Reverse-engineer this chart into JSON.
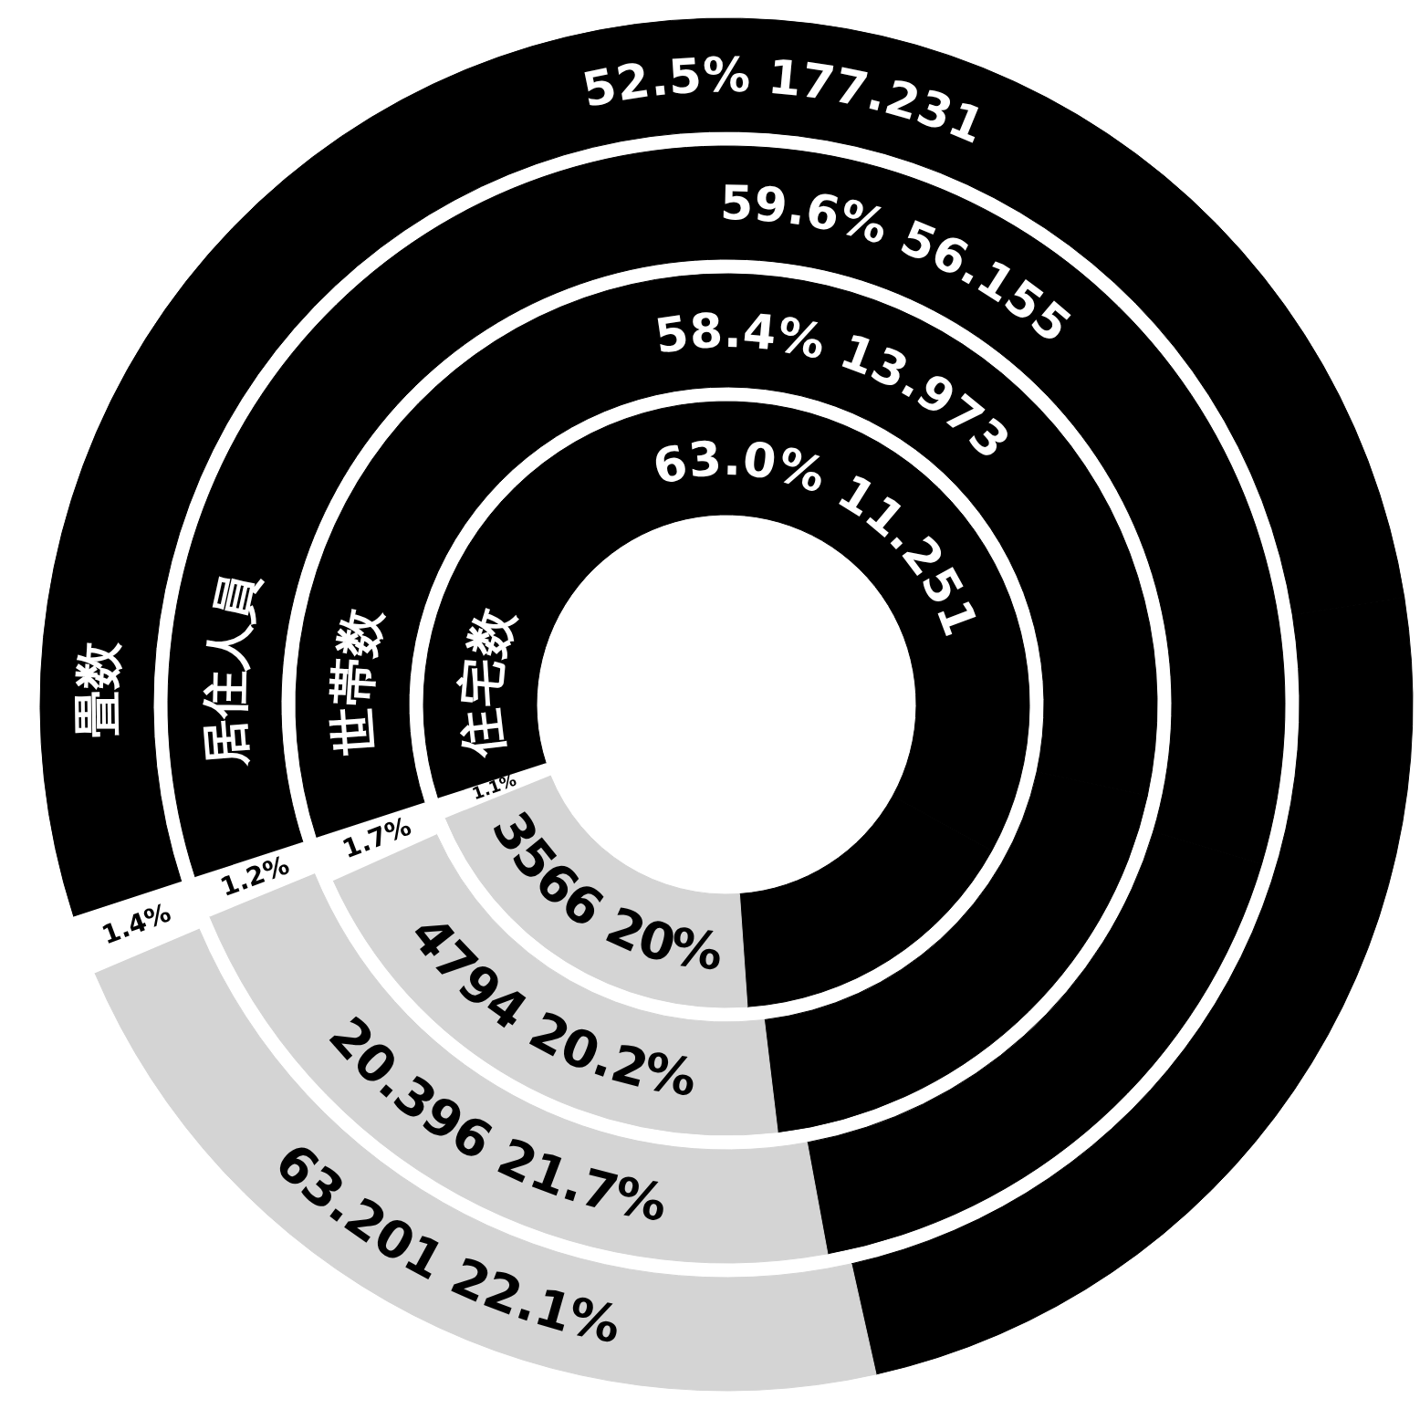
{
  "chart_data": {
    "type": "donut",
    "categories": [
      null,
      null,
      null,
      null
    ],
    "colors": [
      "#000000",
      "#000000",
      "#d4d4d4",
      "#ffffff"
    ],
    "series": [
      {
        "name": "住宅数",
        "values": [
          63.0,
          15.9,
          20,
          1.1
        ],
        "value_labels": [
          "63.0%  11.251",
          null,
          "3566  20%",
          "1.1%"
        ]
      },
      {
        "name": "世帯数",
        "values": [
          58.4,
          19.7,
          20.2,
          1.7
        ],
        "value_labels": [
          "58.4%  13.973",
          null,
          "4794  20.2%",
          "1.7%"
        ]
      },
      {
        "name": "居住人員",
        "values": [
          59.6,
          17.5,
          21.7,
          1.2
        ],
        "value_labels": [
          "59.6%  56.155",
          null,
          "20.396  21.7%",
          "1.2%"
        ]
      },
      {
        "name": "畳数",
        "values": [
          52.5,
          24.0,
          22.1,
          1.4
        ],
        "value_labels": [
          "52.5%  177.231",
          null,
          "63.201  22.1%",
          "1.4%"
        ]
      }
    ]
  }
}
